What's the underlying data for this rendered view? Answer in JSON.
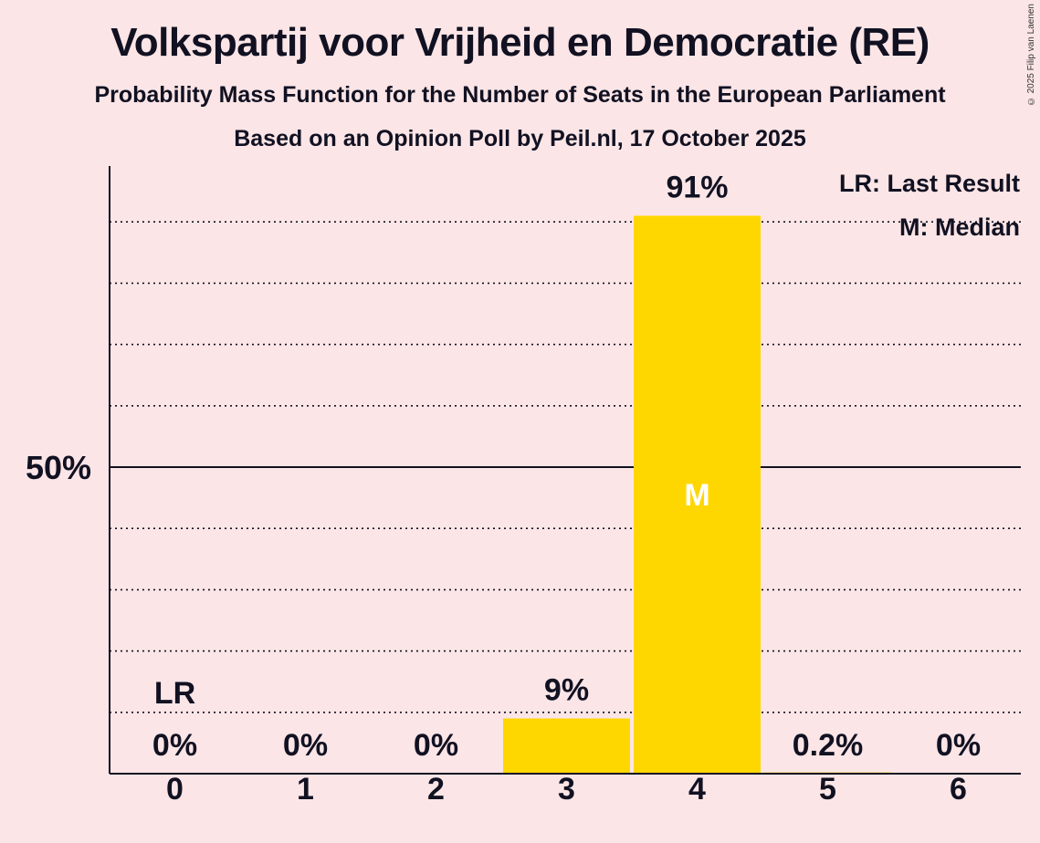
{
  "chart_data": {
    "type": "bar",
    "title": "Volkspartij voor Vrijheid en Democratie (RE)",
    "subtitle": "Probability Mass Function for the Number of Seats in the European Parliament",
    "subtitle2": "Based on an Opinion Poll by Peil.nl, 17 October 2025",
    "copyright": "© 2025 Filip van Laenen",
    "categories": [
      "0",
      "1",
      "2",
      "3",
      "4",
      "5",
      "6"
    ],
    "values": [
      0,
      0,
      0,
      9,
      91,
      0.2,
      0
    ],
    "value_labels": [
      "0%",
      "0%",
      "0%",
      "9%",
      "91%",
      "0.2%",
      "0%"
    ],
    "ylim": [
      0,
      100
    ],
    "gridlines": [
      10,
      20,
      30,
      40,
      60,
      70,
      80,
      90
    ],
    "major_line": 50,
    "major_line_label": "50%",
    "last_result_index": 0,
    "last_result_marker": "LR",
    "median_index": 4,
    "median_marker": "M",
    "legend": [
      "LR: Last Result",
      "M: Median"
    ],
    "bar_color": "#ffd700",
    "background": "#fbe5e6"
  }
}
